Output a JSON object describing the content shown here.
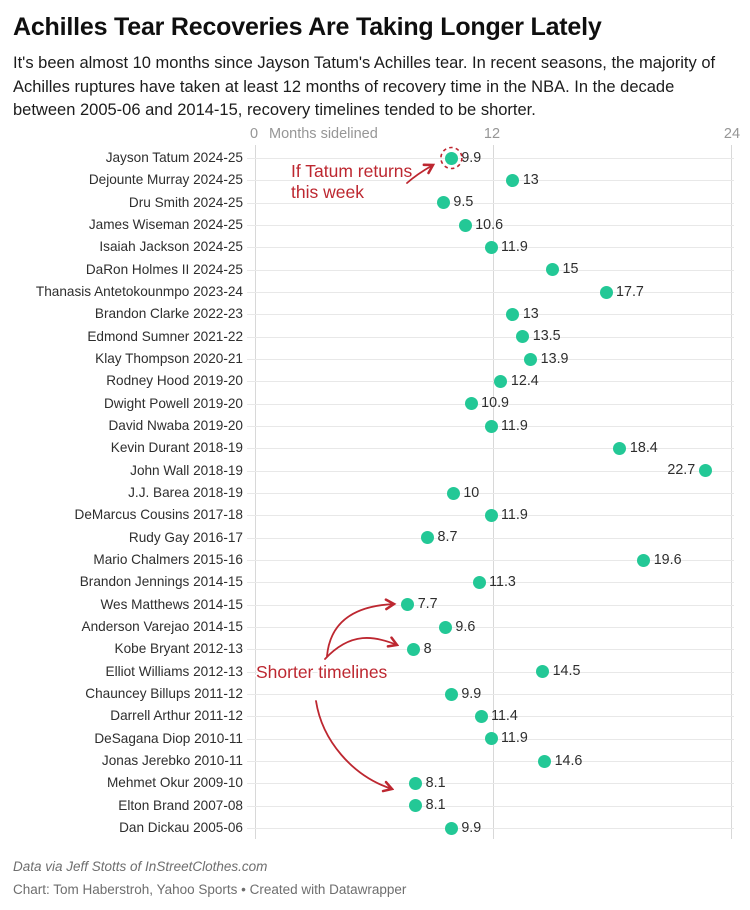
{
  "header": {
    "title": "Achilles Tear Recoveries Are Taking Longer Lately",
    "description": "It's been almost 10 months since Jayson Tatum's Achilles tear. In recent seasons, the majority of Achilles ruptures have taken at least 12 months of recovery time in the NBA. In the decade between 2005-06 and 2014-15, recovery timelines tended to be shorter."
  },
  "axis": {
    "tick_zero": "0",
    "label": "Months sidelined",
    "tick_mid": "12",
    "tick_max": "24"
  },
  "annotations": {
    "tatum": {
      "line1": "If Tatum returns",
      "line2": "this week"
    },
    "shorter": "Shorter timelines"
  },
  "footer": {
    "source": "Data via Jeff Stotts of InStreetClothes.com",
    "credit": "Chart: Tom Haberstroh, Yahoo Sports • Created with Datawrapper"
  },
  "colors": {
    "dot": "#23c896",
    "annotation_red": "#bd2730",
    "grid_horizontal": "#e8e8e8",
    "grid_vertical": "#d8d8d8",
    "label_text": "#2e2e2e",
    "axis_text": "#969696"
  },
  "chart_data": {
    "type": "scatter",
    "title": "Achilles Tear Recoveries Are Taking Longer Lately",
    "xlabel": "Months sidelined",
    "ylabel": "",
    "xlim": [
      0,
      24
    ],
    "x_ticks": [
      0,
      12,
      24
    ],
    "grid": true,
    "rows": [
      {
        "label": "Jayson Tatum 2024-25",
        "value": 9.9,
        "display": "9.9",
        "highlight": "dashed-circle"
      },
      {
        "label": "Dejounte Murray 2024-25",
        "value": 13,
        "display": "13"
      },
      {
        "label": "Dru Smith 2024-25",
        "value": 9.5,
        "display": "9.5"
      },
      {
        "label": "James Wiseman 2024-25",
        "value": 10.6,
        "display": "10.6"
      },
      {
        "label": "Isaiah Jackson 2024-25",
        "value": 11.9,
        "display": "11.9"
      },
      {
        "label": "DaRon Holmes II 2024-25",
        "value": 15,
        "display": "15"
      },
      {
        "label": "Thanasis Antetokounmpo 2023-24",
        "value": 17.7,
        "display": "17.7"
      },
      {
        "label": "Brandon Clarke 2022-23",
        "value": 13,
        "display": "13"
      },
      {
        "label": "Edmond Sumner 2021-22",
        "value": 13.5,
        "display": "13.5"
      },
      {
        "label": "Klay Thompson 2020-21",
        "value": 13.9,
        "display": "13.9"
      },
      {
        "label": "Rodney Hood 2019-20",
        "value": 12.4,
        "display": "12.4"
      },
      {
        "label": "Dwight Powell 2019-20",
        "value": 10.9,
        "display": "10.9"
      },
      {
        "label": "David Nwaba 2019-20",
        "value": 11.9,
        "display": "11.9"
      },
      {
        "label": "Kevin Durant 2018-19",
        "value": 18.4,
        "display": "18.4"
      },
      {
        "label": "John Wall 2018-19",
        "value": 22.7,
        "display": "22.7",
        "label_side": "left"
      },
      {
        "label": "J.J. Barea 2018-19",
        "value": 10,
        "display": "10"
      },
      {
        "label": "DeMarcus Cousins 2017-18",
        "value": 11.9,
        "display": "11.9"
      },
      {
        "label": "Rudy Gay 2016-17",
        "value": 8.7,
        "display": "8.7"
      },
      {
        "label": "Mario Chalmers 2015-16",
        "value": 19.6,
        "display": "19.6"
      },
      {
        "label": "Brandon Jennings 2014-15",
        "value": 11.3,
        "display": "11.3"
      },
      {
        "label": "Wes Matthews 2014-15",
        "value": 7.7,
        "display": "7.7"
      },
      {
        "label": "Anderson Varejao 2014-15",
        "value": 9.6,
        "display": "9.6"
      },
      {
        "label": "Kobe Bryant 2012-13",
        "value": 8,
        "display": "8"
      },
      {
        "label": "Elliot Williams 2012-13",
        "value": 14.5,
        "display": "14.5"
      },
      {
        "label": "Chauncey Billups 2011-12",
        "value": 9.9,
        "display": "9.9"
      },
      {
        "label": "Darrell Arthur 2011-12",
        "value": 11.4,
        "display": "11.4"
      },
      {
        "label": "DeSagana Diop 2010-11",
        "value": 11.9,
        "display": "11.9"
      },
      {
        "label": "Jonas Jerebko 2010-11",
        "value": 14.6,
        "display": "14.6"
      },
      {
        "label": "Mehmet Okur 2009-10",
        "value": 8.1,
        "display": "8.1"
      },
      {
        "label": "Elton Brand 2007-08",
        "value": 8.1,
        "display": "8.1"
      },
      {
        "label": "Dan Dickau 2005-06",
        "value": 9.9,
        "display": "9.9"
      }
    ]
  }
}
